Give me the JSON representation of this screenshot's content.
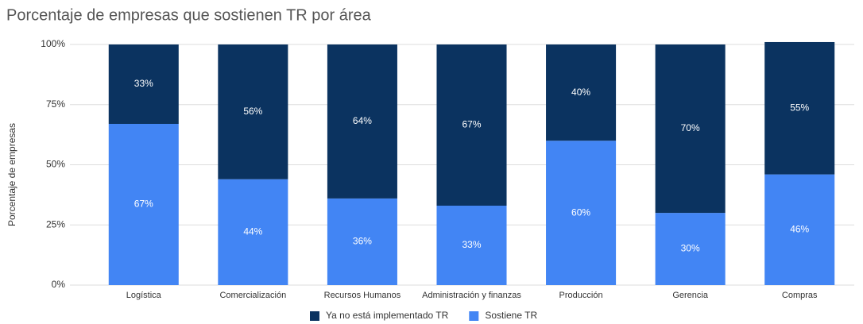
{
  "chart_data": {
    "type": "stacked_bar",
    "title": "Porcentaje de empresas que sostienen TR por área",
    "ylabel": "Porcentaje de empresas",
    "categories": [
      "Logística",
      "Comercialización",
      "Recursos Humanos",
      "Administración y finanzas",
      "Producción",
      "Gerencia",
      "Compras"
    ],
    "series": [
      {
        "name": "Ya no está implementado TR",
        "color": "#0b3360",
        "values": [
          33,
          56,
          64,
          67,
          40,
          70,
          55
        ],
        "value_labels": [
          "33%",
          "56%",
          "64%",
          "67%",
          "40%",
          "70%",
          "55%"
        ]
      },
      {
        "name": "Sostiene TR",
        "color": "#4285f4",
        "values": [
          67,
          44,
          36,
          33,
          60,
          30,
          46
        ],
        "value_labels": [
          "67%",
          "44%",
          "36%",
          "33%",
          "60%",
          "30%",
          "46%"
        ]
      }
    ],
    "stack_order": "bottom_last_series",
    "ylim": [
      0,
      100
    ],
    "yticks": [
      {
        "value": 0,
        "label": "0%"
      },
      {
        "value": 25,
        "label": "25%"
      },
      {
        "value": 50,
        "label": "50%"
      },
      {
        "value": 75,
        "label": "75%"
      },
      {
        "value": 100,
        "label": "100%"
      }
    ],
    "grid": true,
    "legend": "bottom"
  }
}
